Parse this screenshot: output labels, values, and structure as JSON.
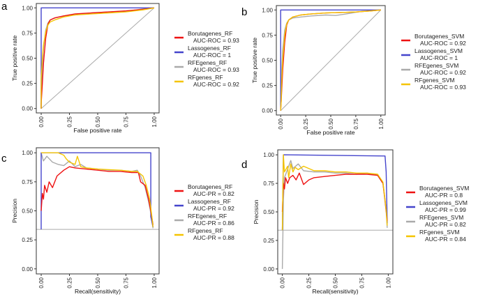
{
  "colors": {
    "Borutagenes": "#ee1111",
    "Lassogenes": "#4444cc",
    "RFEgenes": "#aaaaaa",
    "RFgenes": "#f5c400",
    "reference": "#aaaaaa",
    "frame": "#333333"
  },
  "chart_data": [
    {
      "panel": "a",
      "type": "line",
      "kind": "roc",
      "xlabel": "False positive rate",
      "ylabel": "True positive rate",
      "xticks": [
        "0.00",
        "0.25",
        "0.50",
        "0.75",
        "1.00"
      ],
      "yticks": [
        "0.00",
        "0.25",
        "0.50",
        "0.75",
        "1.00"
      ],
      "xlim": [
        0,
        1
      ],
      "ylim": [
        0,
        1
      ],
      "reference": {
        "type": "diagonal"
      },
      "legend_position": "right",
      "series": [
        {
          "key": "Borutagenes",
          "name": "Borutagenes_RF",
          "metric": "AUC-ROC = 0.93",
          "x": [
            0,
            0,
            0.01,
            0.02,
            0.04,
            0.06,
            0.08,
            0.12,
            0.2,
            0.3,
            0.45,
            0.6,
            0.75,
            0.9,
            1.0
          ],
          "y": [
            0,
            0.05,
            0.25,
            0.45,
            0.7,
            0.84,
            0.88,
            0.9,
            0.92,
            0.94,
            0.95,
            0.96,
            0.97,
            0.985,
            1.0
          ]
        },
        {
          "key": "Lassogenes",
          "name": "Lassogenes_RF",
          "metric": "AUC-ROC = 1",
          "x": [
            0,
            0,
            1.0
          ],
          "y": [
            0,
            1.0,
            1.0
          ]
        },
        {
          "key": "RFEgenes",
          "name": "RFEgenes_RF",
          "metric": "AUC-ROC = 0.93",
          "x": [
            0,
            0,
            0.01,
            0.02,
            0.04,
            0.06,
            0.08,
            0.12,
            0.2,
            0.3,
            0.45,
            0.6,
            0.75,
            0.9,
            1.0
          ],
          "y": [
            0,
            0.15,
            0.4,
            0.6,
            0.78,
            0.85,
            0.88,
            0.9,
            0.92,
            0.93,
            0.95,
            0.96,
            0.965,
            0.99,
            1.0
          ]
        },
        {
          "key": "RFgenes",
          "name": "RFgenes_RF",
          "metric": "AUC-ROC = 0.92",
          "x": [
            0,
            0,
            0.01,
            0.02,
            0.04,
            0.06,
            0.08,
            0.12,
            0.2,
            0.3,
            0.45,
            0.6,
            0.75,
            0.9,
            1.0
          ],
          "y": [
            0,
            0.3,
            0.5,
            0.63,
            0.76,
            0.83,
            0.86,
            0.88,
            0.91,
            0.93,
            0.94,
            0.95,
            0.96,
            0.98,
            1.0
          ]
        }
      ]
    },
    {
      "panel": "b",
      "type": "line",
      "kind": "roc",
      "xlabel": "False positive rate",
      "ylabel": "True positive rate",
      "xticks": [
        "0.00",
        "0.25",
        "0.50",
        "0.75",
        "1.00"
      ],
      "yticks": [
        "0.00",
        "0.25",
        "0.50",
        "0.75",
        "1.00"
      ],
      "xlim": [
        0,
        1
      ],
      "ylim": [
        0,
        1
      ],
      "reference": {
        "type": "diagonal"
      },
      "legend_position": "right",
      "series": [
        {
          "key": "Borutagenes",
          "name": "Borutagenes_SVM",
          "metric": "AUC-ROC = 0.92",
          "x": [
            0,
            0.005,
            0.01,
            0.02,
            0.04,
            0.06,
            0.08,
            0.12,
            0.2,
            0.3,
            0.45,
            0.6,
            0.75,
            0.9,
            1.0
          ],
          "y": [
            0,
            0.1,
            0.2,
            0.4,
            0.68,
            0.85,
            0.9,
            0.93,
            0.95,
            0.96,
            0.97,
            0.975,
            0.98,
            0.99,
            1.0
          ]
        },
        {
          "key": "Lassogenes",
          "name": "Lassogenes_SVM",
          "metric": "AUC-ROC = 1",
          "x": [
            0,
            0,
            1.0
          ],
          "y": [
            0,
            1.0,
            1.0
          ]
        },
        {
          "key": "RFEgenes",
          "name": "RFEgenes_SVM",
          "metric": "AUC-ROC = 0.92",
          "x": [
            0,
            0.005,
            0.01,
            0.02,
            0.04,
            0.06,
            0.08,
            0.12,
            0.2,
            0.3,
            0.45,
            0.55,
            0.65,
            0.8,
            1.0
          ],
          "y": [
            0,
            0.2,
            0.4,
            0.6,
            0.8,
            0.87,
            0.9,
            0.92,
            0.93,
            0.94,
            0.95,
            0.945,
            0.96,
            0.985,
            1.0
          ]
        },
        {
          "key": "RFgenes",
          "name": "RFgenes_SVM",
          "metric": "AUC-ROC = 0.93",
          "x": [
            0,
            0.005,
            0.01,
            0.02,
            0.04,
            0.06,
            0.08,
            0.12,
            0.2,
            0.3,
            0.45,
            0.6,
            0.75,
            0.9,
            1.0
          ],
          "y": [
            0,
            0.1,
            0.3,
            0.5,
            0.75,
            0.86,
            0.9,
            0.93,
            0.95,
            0.96,
            0.97,
            0.975,
            0.98,
            0.99,
            1.0
          ]
        }
      ]
    },
    {
      "panel": "c",
      "type": "line",
      "kind": "pr",
      "xlabel": "Recall(sensitivity)",
      "ylabel": "Precision",
      "xticks": [
        "0.00",
        "0.25",
        "0.50",
        "0.75",
        "1.00"
      ],
      "yticks": [
        "0.00",
        "0.25",
        "0.50",
        "0.75",
        "1.00"
      ],
      "xlim": [
        0,
        1
      ],
      "ylim": [
        0,
        1
      ],
      "reference": {
        "type": "horizontal",
        "y": 0.34
      },
      "legend_position": "right",
      "series": [
        {
          "key": "Borutagenes",
          "name": "Borutagenes_RF",
          "metric": "AUC-PR = 0.82",
          "x": [
            0,
            0.01,
            0.02,
            0.03,
            0.05,
            0.07,
            0.1,
            0.14,
            0.2,
            0.25,
            0.3,
            0.4,
            0.5,
            0.6,
            0.7,
            0.8,
            0.86,
            0.88,
            0.92,
            0.95,
            0.97,
            0.99
          ],
          "y": [
            0.5,
            0.65,
            0.6,
            0.72,
            0.66,
            0.75,
            0.7,
            0.8,
            0.85,
            0.88,
            0.87,
            0.86,
            0.85,
            0.84,
            0.84,
            0.83,
            0.83,
            0.75,
            0.72,
            0.6,
            0.5,
            0.38
          ]
        },
        {
          "key": "Lassogenes",
          "name": "Lassogenes_RF",
          "metric": "AUC-PR = 0.92",
          "x": [
            0,
            0,
            0.97,
            0.97,
            0.99
          ],
          "y": [
            0.34,
            1.0,
            1.0,
            0.45,
            0.36
          ]
        },
        {
          "key": "RFEgenes",
          "name": "RFEgenes_RF",
          "metric": "AUC-PR = 0.86",
          "x": [
            0,
            0.02,
            0.05,
            0.1,
            0.15,
            0.2,
            0.25,
            0.3,
            0.35,
            0.4,
            0.5,
            0.6,
            0.7,
            0.8,
            0.85,
            0.88,
            0.92,
            0.95,
            0.97,
            0.99
          ],
          "y": [
            1.0,
            0.93,
            0.97,
            0.92,
            0.9,
            0.89,
            0.93,
            0.88,
            0.9,
            0.87,
            0.86,
            0.85,
            0.85,
            0.84,
            0.85,
            0.8,
            0.7,
            0.58,
            0.48,
            0.35
          ]
        },
        {
          "key": "RFgenes",
          "name": "RFgenes_RF",
          "metric": "AUC-PR = 0.88",
          "x": [
            0,
            0.02,
            0.15,
            0.2,
            0.22,
            0.25,
            0.3,
            0.32,
            0.35,
            0.4,
            0.5,
            0.6,
            0.7,
            0.8,
            0.85,
            0.9,
            0.93,
            0.96,
            0.98,
            0.99
          ],
          "y": [
            1.0,
            1.0,
            1.0,
            0.98,
            0.95,
            0.92,
            0.9,
            0.97,
            0.88,
            0.87,
            0.86,
            0.855,
            0.85,
            0.84,
            0.84,
            0.8,
            0.72,
            0.6,
            0.45,
            0.36
          ]
        }
      ]
    },
    {
      "panel": "d",
      "type": "line",
      "kind": "pr",
      "xlabel": "Recall(sensitivity)",
      "ylabel": "Precision",
      "xticks": [
        "0.00",
        "0.25",
        "0.50",
        "0.75",
        "1.00"
      ],
      "yticks": [
        "0.00",
        "0.25",
        "0.50",
        "0.75",
        "1.00"
      ],
      "xlim": [
        0,
        1
      ],
      "ylim": [
        0,
        1
      ],
      "reference": {
        "type": "horizontal",
        "y": 0.34
      },
      "legend_position": "right",
      "series": [
        {
          "key": "Borutagenes",
          "name": "Borutagenes_SVM",
          "metric": "AUC-PR = 0.8",
          "x": [
            0,
            0.01,
            0.02,
            0.03,
            0.05,
            0.07,
            0.1,
            0.13,
            0.16,
            0.2,
            0.25,
            0.3,
            0.4,
            0.5,
            0.6,
            0.7,
            0.8,
            0.9,
            0.95,
            0.97,
            0.99
          ],
          "y": [
            0.5,
            0.75,
            0.7,
            0.8,
            0.75,
            0.8,
            0.82,
            0.78,
            0.84,
            0.74,
            0.78,
            0.8,
            0.81,
            0.82,
            0.83,
            0.83,
            0.83,
            0.82,
            0.75,
            0.6,
            0.42
          ]
        },
        {
          "key": "Lassogenes",
          "name": "Lassogenes_SVM",
          "metric": "AUC-PR = 0.99",
          "x": [
            0,
            0.005,
            0.01,
            0.97,
            0.98,
            0.99
          ],
          "y": [
            0.34,
            0.7,
            1.0,
            0.99,
            0.85,
            0.4
          ]
        },
        {
          "key": "RFEgenes",
          "name": "RFEgenes_SVM",
          "metric": "AUC-PR = 0.82",
          "x": [
            0,
            0.005,
            0.01,
            0.02,
            0.04,
            0.06,
            0.08,
            0.1,
            0.15,
            0.2,
            0.3,
            0.4,
            0.5,
            0.6,
            0.7,
            0.8,
            0.9,
            0.95,
            0.98,
            0.99
          ],
          "y": [
            0.0,
            0.3,
            0.6,
            0.8,
            0.85,
            0.9,
            0.95,
            0.88,
            0.92,
            0.86,
            0.85,
            0.85,
            0.84,
            0.84,
            0.83,
            0.84,
            0.82,
            0.75,
            0.5,
            0.36
          ]
        },
        {
          "key": "RFgenes",
          "name": "RFgenes_SVM",
          "metric": "AUC-PR = 0.84",
          "x": [
            0,
            0.01,
            0.02,
            0.05,
            0.06,
            0.08,
            0.1,
            0.12,
            0.15,
            0.2,
            0.3,
            0.4,
            0.5,
            0.6,
            0.7,
            0.8,
            0.9,
            0.95,
            0.98,
            0.99
          ],
          "y": [
            0.34,
            1.0,
            0.85,
            0.9,
            0.8,
            0.92,
            0.85,
            0.89,
            0.87,
            0.9,
            0.86,
            0.86,
            0.85,
            0.85,
            0.84,
            0.84,
            0.83,
            0.76,
            0.52,
            0.38
          ]
        }
      ]
    }
  ]
}
